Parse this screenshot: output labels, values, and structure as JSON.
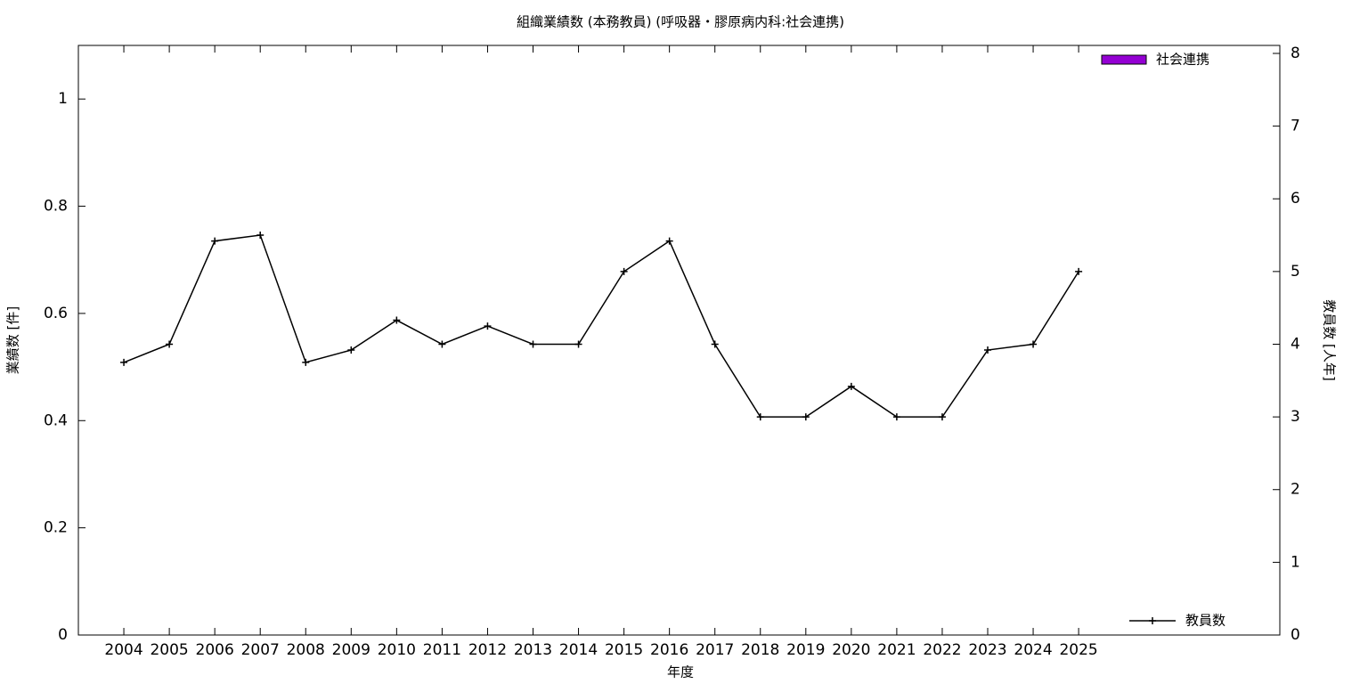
{
  "chart_data": {
    "type": "bar-line",
    "title": "組織業績数 (本務教員) (呼吸器・膠原病内科:社会連携)",
    "xlabel": "年度",
    "ylabel": "業績数 [件]",
    "y2label": "教員数 [人年]",
    "categories": [
      "2004",
      "2005",
      "2006",
      "2007",
      "2008",
      "2009",
      "2010",
      "2011",
      "2012",
      "2013",
      "2014",
      "2015",
      "2016",
      "2017",
      "2018",
      "2019",
      "2020",
      "2021",
      "2022",
      "2023",
      "2024",
      "2025"
    ],
    "series": [
      {
        "name": "社会連携",
        "type": "bar",
        "color": "#9400d3",
        "values": [
          null,
          null,
          null,
          null,
          null,
          null,
          null,
          null,
          null,
          null,
          null,
          null,
          null,
          null,
          null,
          null,
          null,
          null,
          null,
          null,
          null,
          null
        ]
      },
      {
        "name": "教員数",
        "type": "line",
        "axis": "y2",
        "color": "#000000",
        "values": [
          3.75,
          4,
          5.42,
          5.5,
          3.75,
          3.92,
          4.33,
          4,
          4.25,
          4,
          4,
          5,
          5.42,
          4,
          3,
          3,
          3.42,
          3,
          3,
          3.92,
          4,
          5
        ]
      }
    ],
    "ylim": [
      0,
      1.1
    ],
    "yticks": [
      0,
      0.2,
      0.4,
      0.6,
      0.8,
      1
    ],
    "y2lim": [
      0,
      8.11
    ],
    "y2ticks": [
      0,
      1,
      2,
      3,
      4,
      5,
      6,
      7,
      8
    ]
  }
}
